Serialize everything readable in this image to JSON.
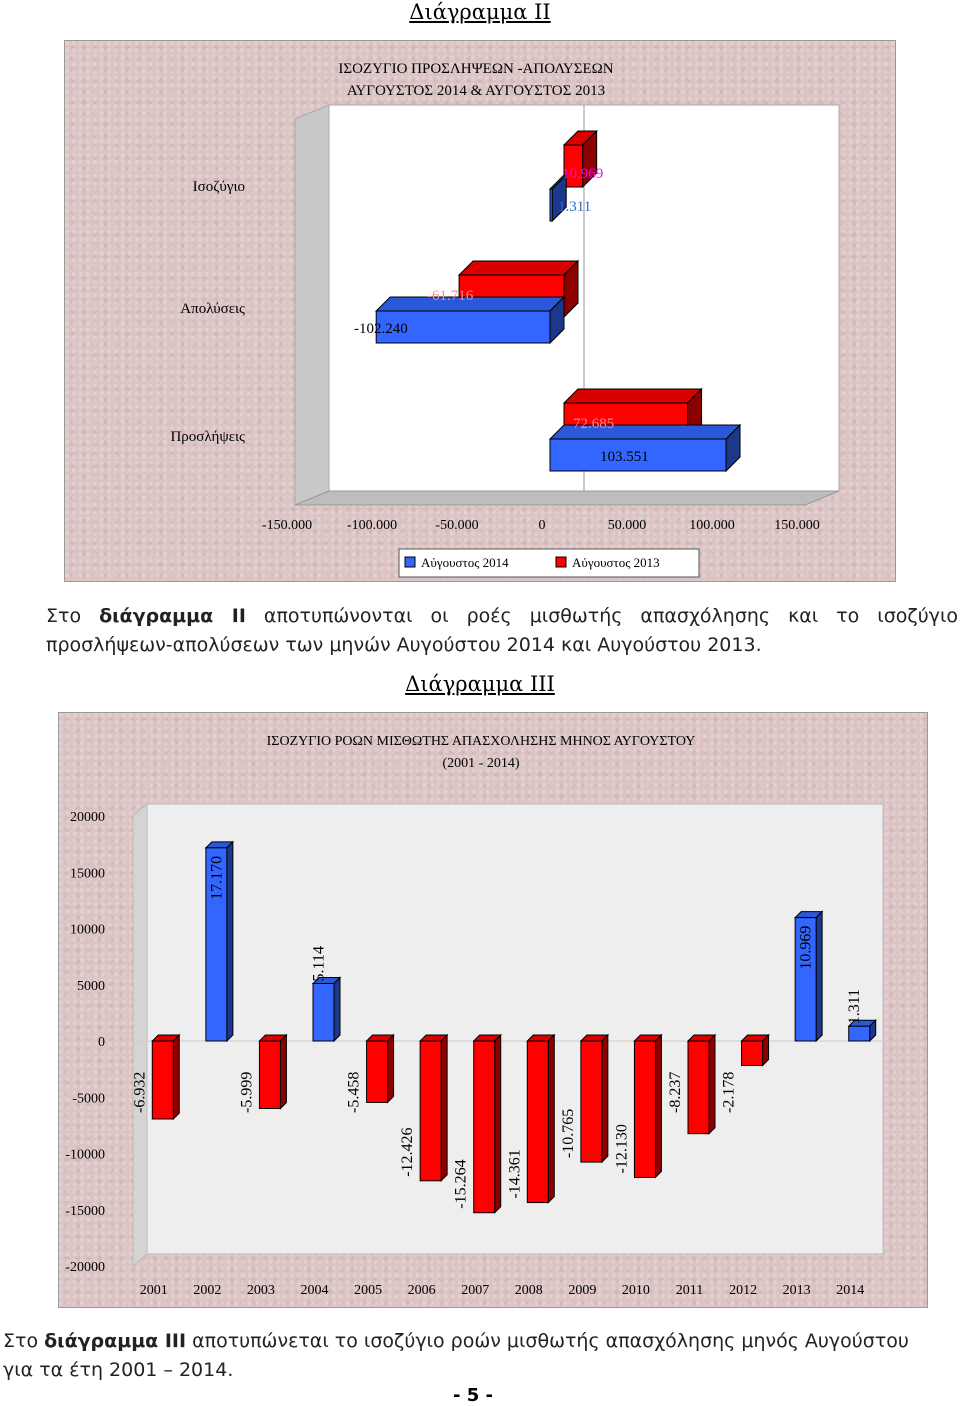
{
  "diagram2": {
    "heading": "Διάγραμμα ΙΙ",
    "title_line1": "ΙΣΟΖΥΓΙΟ ΠΡΟΣΛΗΨΕΩΝ -ΑΠΟΛΥΣΕΩΝ",
    "title_line2": "ΑΥΓΟΥΣΤΟΣ 2014  &  ΑΥΓΟΥΣΤΟΣ 2013",
    "legend": [
      "Αύγουστος 2014",
      "Αύγουστος 2013"
    ]
  },
  "paragraph1": {
    "prefix": "Στο ",
    "bold": "διάγραμμα ΙΙ",
    "rest1": " αποτυπώνονται οι ροές μισθωτής απασχόλησης και το ισοζύγιο",
    "line2": "προσλήψεων-απολύσεων των μηνών Αυγούστου 2014 και Αυγούστου 2013."
  },
  "diagram3": {
    "heading": "Διάγραμμα ΙΙΙ",
    "title_line1": "ΙΣΟΖΥΓΙΟ ΡΟΩΝ ΜΙΣΘΩΤΗΣ ΑΠΑΣΧΟΛΗΣΗΣ ΜΗΝΟΣ ΑΥΓΟΥΣΤΟΥ",
    "title_line2": "(2001 - 2014)"
  },
  "paragraph2": {
    "prefix": "Στο ",
    "bold": "διάγραμμα ΙΙΙ",
    "rest1": " αποτυπώνεται το ισοζύγιο ροών μισθωτής απασχόλησης μηνός Αυγούστου",
    "line2": "για τα έτη 2001 – 2014."
  },
  "page_number": "- 5 -",
  "colors": {
    "blue": "#3366ff",
    "red": "#ff0000",
    "pink_label": "#ff00ff",
    "blue_label": "#3366cc"
  },
  "chart_data": [
    {
      "type": "bar",
      "orientation": "horizontal",
      "title": "ΙΣΟΖΥΓΙΟ ΠΡΟΣΛΗΨΕΩΝ -ΑΠΟΛΥΣΕΩΝ ΑΥΓΟΥΣΤΟΣ 2014  &  ΑΥΓΟΥΣΤΟΣ 2013",
      "categories": [
        "Ισοζύγιο",
        "Απολύσεις",
        "Προσλήψεις"
      ],
      "series": [
        {
          "name": "Αύγουστος 2014",
          "values": [
            1311,
            -102240,
            103551
          ],
          "labels": [
            "1.311",
            "-102.240",
            "103.551"
          ]
        },
        {
          "name": "Αύγουστος 2013",
          "values": [
            10969,
            -61716,
            72685
          ],
          "labels": [
            "10.969",
            "-61.716",
            "72.685"
          ]
        }
      ],
      "xticks": [
        "-150.000",
        "-100.000",
        "-50.000",
        "0",
        "50.000",
        "100.000",
        "150.000"
      ],
      "xlim": [
        -150000,
        150000
      ],
      "legend_position": "bottom"
    },
    {
      "type": "bar",
      "title": "ΙΣΟΖΥΓΙΟ ΡΟΩΝ ΜΙΣΘΩΤΗΣ ΑΠΑΣΧΟΛΗΣΗΣ ΜΗΝΟΣ ΑΥΓΟΥΣΤΟΥ (2001 - 2014)",
      "categories": [
        "2001",
        "2002",
        "2003",
        "2004",
        "2005",
        "2006",
        "2007",
        "2008",
        "2009",
        "2010",
        "2011",
        "2012",
        "2013",
        "2014"
      ],
      "values": [
        -6932,
        17170,
        -5999,
        5114,
        -5458,
        -12426,
        -15264,
        -14361,
        -10765,
        -12130,
        -8237,
        -2178,
        10969,
        1311
      ],
      "labels": [
        "-6.932",
        "17.170",
        "-5.999",
        "5.114",
        "-5.458",
        "-12.426",
        "-15.264",
        "-14.361",
        "-10.765",
        "-12.130",
        "-8.237",
        "-2.178",
        "10.969",
        "1.311"
      ],
      "yticks": [
        "20000",
        "15000",
        "10000",
        "5000",
        "0",
        "-5000",
        "-10000",
        "-15000",
        "-20000"
      ],
      "ylim": [
        -20000,
        20000
      ]
    }
  ]
}
